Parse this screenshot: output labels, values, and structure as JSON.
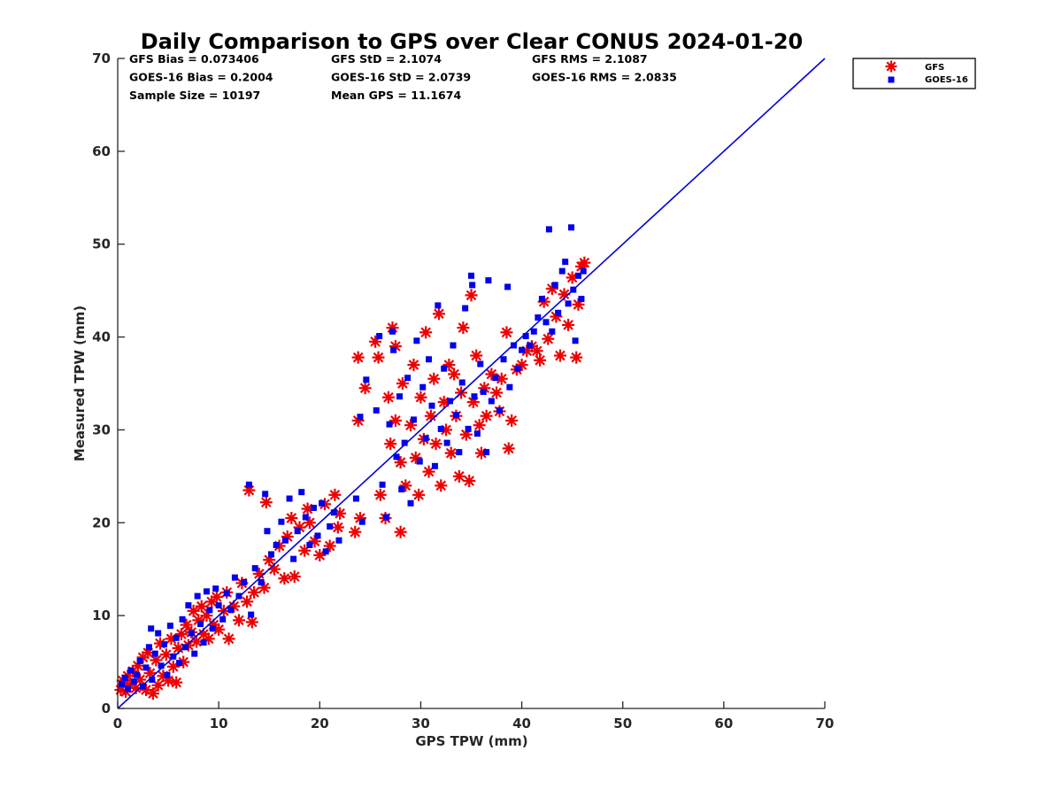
{
  "chart_data": {
    "type": "scatter",
    "title": "Daily Comparison to GPS over Clear CONUS 2024-01-20",
    "xlabel": "GPS TPW (mm)",
    "ylabel": "Measured TPW (mm)",
    "xlim": [
      0,
      70
    ],
    "ylim": [
      0,
      70
    ],
    "xticks": [
      0,
      10,
      20,
      30,
      40,
      50,
      60,
      70
    ],
    "yticks": [
      0,
      10,
      20,
      30,
      40,
      50,
      60,
      70
    ],
    "legend_position": "outside-top-right",
    "stats": [
      [
        "GFS Bias = 0.073406",
        "GFS StD = 2.1074",
        "GFS RMS = 2.1087"
      ],
      [
        "GOES-16 Bias = 0.2004",
        "GOES-16 StD = 2.0739",
        "GOES-16 RMS = 2.0835"
      ],
      [
        "Sample Size = 10197",
        "Mean GPS = 11.1674"
      ]
    ],
    "reference_line": {
      "x": [
        0,
        70
      ],
      "y": [
        0,
        70
      ],
      "color": "#0000dd"
    },
    "series": [
      {
        "name": "GFS",
        "marker": "asterisk",
        "color": "#ee0000",
        "points": [
          [
            0.3,
            2.0
          ],
          [
            0.5,
            3.0
          ],
          [
            0.8,
            1.8
          ],
          [
            1.0,
            3.5
          ],
          [
            1.2,
            2.5
          ],
          [
            1.5,
            4.0
          ],
          [
            1.8,
            2.2
          ],
          [
            2.0,
            4.6
          ],
          [
            2.2,
            3.1
          ],
          [
            2.5,
            5.5
          ],
          [
            2.8,
            2.0
          ],
          [
            3.0,
            6.0
          ],
          [
            3.2,
            3.8
          ],
          [
            3.5,
            1.6
          ],
          [
            3.8,
            5.2
          ],
          [
            4.0,
            2.5
          ],
          [
            4.2,
            7.0
          ],
          [
            4.5,
            3.5
          ],
          [
            4.8,
            5.8
          ],
          [
            5.0,
            3.0
          ],
          [
            5.3,
            7.5
          ],
          [
            5.5,
            4.5
          ],
          [
            5.8,
            2.8
          ],
          [
            6.0,
            6.5
          ],
          [
            6.3,
            8.0
          ],
          [
            6.5,
            5.0
          ],
          [
            6.8,
            9.0
          ],
          [
            7.0,
            6.8
          ],
          [
            7.3,
            8.2
          ],
          [
            7.5,
            10.5
          ],
          [
            7.8,
            7.2
          ],
          [
            8.0,
            9.5
          ],
          [
            8.3,
            11.0
          ],
          [
            8.5,
            8.0
          ],
          [
            8.8,
            10.0
          ],
          [
            9.0,
            7.5
          ],
          [
            9.3,
            11.5
          ],
          [
            9.5,
            9.0
          ],
          [
            9.8,
            12.0
          ],
          [
            10.0,
            8.5
          ],
          [
            10.5,
            10.5
          ],
          [
            10.8,
            12.5
          ],
          [
            11.0,
            7.5
          ],
          [
            11.5,
            11.0
          ],
          [
            12.0,
            9.5
          ],
          [
            12.3,
            13.5
          ],
          [
            12.8,
            11.5
          ],
          [
            13.0,
            23.5
          ],
          [
            13.3,
            9.3
          ],
          [
            13.5,
            12.5
          ],
          [
            14.0,
            14.5
          ],
          [
            14.5,
            13.0
          ],
          [
            14.7,
            22.2
          ],
          [
            15.0,
            16.0
          ],
          [
            15.5,
            15.0
          ],
          [
            16.0,
            17.5
          ],
          [
            16.5,
            14.0
          ],
          [
            16.8,
            18.5
          ],
          [
            17.2,
            20.5
          ],
          [
            17.5,
            14.2
          ],
          [
            18.0,
            19.5
          ],
          [
            18.5,
            17.0
          ],
          [
            18.8,
            21.5
          ],
          [
            19.0,
            20.0
          ],
          [
            19.5,
            18.0
          ],
          [
            20.0,
            16.5
          ],
          [
            20.5,
            22.0
          ],
          [
            21.0,
            17.5
          ],
          [
            21.5,
            23.0
          ],
          [
            21.8,
            19.5
          ],
          [
            22.0,
            21.0
          ],
          [
            23.5,
            19.0
          ],
          [
            24.0,
            20.5
          ],
          [
            23.8,
            31.0
          ],
          [
            23.8,
            37.8
          ],
          [
            24.5,
            34.5
          ],
          [
            25.5,
            39.5
          ],
          [
            25.8,
            37.8
          ],
          [
            26.0,
            23.0
          ],
          [
            26.5,
            20.5
          ],
          [
            26.8,
            33.5
          ],
          [
            27.0,
            28.5
          ],
          [
            27.2,
            41.0
          ],
          [
            27.5,
            31.0
          ],
          [
            27.5,
            39.0
          ],
          [
            28.0,
            19.0
          ],
          [
            28.0,
            26.5
          ],
          [
            28.2,
            35.0
          ],
          [
            28.5,
            24.0
          ],
          [
            29.0,
            30.5
          ],
          [
            29.3,
            37.0
          ],
          [
            29.5,
            27.0
          ],
          [
            29.8,
            23.0
          ],
          [
            30.0,
            33.5
          ],
          [
            30.3,
            29.0
          ],
          [
            30.5,
            40.5
          ],
          [
            30.8,
            25.5
          ],
          [
            31.0,
            31.5
          ],
          [
            31.3,
            35.5
          ],
          [
            31.5,
            28.5
          ],
          [
            31.8,
            42.5
          ],
          [
            32.0,
            24.0
          ],
          [
            32.3,
            33.0
          ],
          [
            32.5,
            30.0
          ],
          [
            32.8,
            37.0
          ],
          [
            33.0,
            27.5
          ],
          [
            33.3,
            36.0
          ],
          [
            33.5,
            31.5
          ],
          [
            33.8,
            25.0
          ],
          [
            34.0,
            34.0
          ],
          [
            34.2,
            41.0
          ],
          [
            34.5,
            29.5
          ],
          [
            34.8,
            24.5
          ],
          [
            35.0,
            44.5
          ],
          [
            35.2,
            33.0
          ],
          [
            35.5,
            38.0
          ],
          [
            35.8,
            30.5
          ],
          [
            36.0,
            27.5
          ],
          [
            36.3,
            34.5
          ],
          [
            36.5,
            31.5
          ],
          [
            37.0,
            36.0
          ],
          [
            37.5,
            34.0
          ],
          [
            37.8,
            32.0
          ],
          [
            38.0,
            35.5
          ],
          [
            38.5,
            40.5
          ],
          [
            38.7,
            28.0
          ],
          [
            39.0,
            31.0
          ],
          [
            39.5,
            36.5
          ],
          [
            40.0,
            37.0
          ],
          [
            40.5,
            38.5
          ],
          [
            41.0,
            39.0
          ],
          [
            41.5,
            38.5
          ],
          [
            41.8,
            37.5
          ],
          [
            42.2,
            43.8
          ],
          [
            42.6,
            39.8
          ],
          [
            43.0,
            45.2
          ],
          [
            43.4,
            42.2
          ],
          [
            43.8,
            38.0
          ],
          [
            44.2,
            44.6
          ],
          [
            44.6,
            41.3
          ],
          [
            45.0,
            46.4
          ],
          [
            45.4,
            37.8
          ],
          [
            45.6,
            43.5
          ],
          [
            45.9,
            47.6
          ],
          [
            46.2,
            48.0
          ]
        ]
      },
      {
        "name": "GOES-16",
        "marker": "square",
        "color": "#0000ee",
        "points": [
          [
            0.4,
            2.6
          ],
          [
            0.7,
            3.3
          ],
          [
            1.0,
            2.1
          ],
          [
            1.3,
            4.1
          ],
          [
            1.6,
            2.9
          ],
          [
            1.9,
            3.6
          ],
          [
            2.2,
            5.1
          ],
          [
            2.5,
            2.4
          ],
          [
            2.8,
            4.4
          ],
          [
            3.1,
            6.6
          ],
          [
            3.3,
            8.6
          ],
          [
            3.4,
            3.1
          ],
          [
            3.7,
            5.9
          ],
          [
            4.0,
            8.1
          ],
          [
            4.3,
            4.6
          ],
          [
            4.6,
            6.9
          ],
          [
            4.9,
            3.6
          ],
          [
            5.2,
            8.9
          ],
          [
            5.5,
            5.6
          ],
          [
            5.8,
            7.6
          ],
          [
            6.1,
            4.9
          ],
          [
            6.4,
            9.6
          ],
          [
            6.7,
            6.6
          ],
          [
            7.0,
            11.1
          ],
          [
            7.3,
            8.1
          ],
          [
            7.6,
            5.9
          ],
          [
            7.9,
            12.1
          ],
          [
            8.2,
            9.1
          ],
          [
            8.5,
            7.1
          ],
          [
            8.8,
            12.6
          ],
          [
            9.1,
            10.6
          ],
          [
            9.4,
            8.6
          ],
          [
            9.7,
            12.9
          ],
          [
            10.0,
            11.1
          ],
          [
            10.4,
            9.6
          ],
          [
            10.8,
            12.4
          ],
          [
            11.2,
            10.6
          ],
          [
            11.6,
            14.1
          ],
          [
            12.0,
            12.1
          ],
          [
            12.5,
            13.6
          ],
          [
            13.0,
            24.1
          ],
          [
            13.2,
            10.1
          ],
          [
            13.6,
            15.1
          ],
          [
            14.2,
            13.6
          ],
          [
            14.6,
            23.1
          ],
          [
            14.8,
            19.1
          ],
          [
            15.2,
            16.6
          ],
          [
            15.7,
            17.6
          ],
          [
            16.2,
            20.1
          ],
          [
            16.6,
            18.1
          ],
          [
            17.0,
            22.6
          ],
          [
            17.4,
            16.1
          ],
          [
            17.8,
            19.1
          ],
          [
            18.2,
            23.3
          ],
          [
            18.6,
            20.6
          ],
          [
            19.0,
            17.6
          ],
          [
            19.4,
            21.6
          ],
          [
            19.8,
            18.6
          ],
          [
            20.2,
            22.1
          ],
          [
            20.6,
            16.9
          ],
          [
            21.0,
            19.6
          ],
          [
            21.4,
            21.1
          ],
          [
            21.9,
            18.1
          ],
          [
            23.6,
            22.6
          ],
          [
            24.0,
            31.4
          ],
          [
            24.2,
            20.1
          ],
          [
            24.6,
            35.4
          ],
          [
            25.6,
            32.1
          ],
          [
            25.9,
            40.1
          ],
          [
            26.2,
            24.1
          ],
          [
            26.6,
            20.6
          ],
          [
            26.9,
            30.6
          ],
          [
            27.2,
            40.6
          ],
          [
            27.3,
            38.6
          ],
          [
            27.6,
            27.1
          ],
          [
            27.9,
            33.6
          ],
          [
            28.1,
            23.6
          ],
          [
            28.4,
            28.6
          ],
          [
            28.7,
            35.6
          ],
          [
            29.0,
            22.1
          ],
          [
            29.3,
            31.1
          ],
          [
            29.6,
            39.6
          ],
          [
            29.9,
            26.6
          ],
          [
            30.2,
            34.6
          ],
          [
            30.5,
            29.1
          ],
          [
            30.8,
            37.6
          ],
          [
            31.1,
            32.6
          ],
          [
            31.4,
            26.1
          ],
          [
            31.7,
            43.4
          ],
          [
            32.0,
            30.1
          ],
          [
            32.3,
            36.6
          ],
          [
            32.6,
            28.6
          ],
          [
            32.9,
            33.1
          ],
          [
            33.2,
            39.1
          ],
          [
            33.5,
            31.6
          ],
          [
            33.8,
            27.6
          ],
          [
            34.1,
            35.1
          ],
          [
            34.4,
            43.1
          ],
          [
            34.7,
            30.1
          ],
          [
            35.0,
            46.6
          ],
          [
            35.1,
            45.6
          ],
          [
            35.3,
            33.6
          ],
          [
            35.6,
            29.6
          ],
          [
            35.9,
            37.1
          ],
          [
            36.2,
            34.1
          ],
          [
            36.5,
            27.6
          ],
          [
            36.7,
            46.1
          ],
          [
            37.0,
            33.1
          ],
          [
            37.4,
            35.6
          ],
          [
            37.8,
            32.1
          ],
          [
            38.2,
            37.6
          ],
          [
            38.6,
            45.4
          ],
          [
            38.8,
            34.6
          ],
          [
            39.2,
            39.1
          ],
          [
            39.6,
            36.6
          ],
          [
            40.0,
            38.6
          ],
          [
            40.4,
            40.1
          ],
          [
            40.8,
            39.1
          ],
          [
            41.2,
            40.6
          ],
          [
            41.6,
            42.1
          ],
          [
            42.0,
            44.1
          ],
          [
            42.4,
            41.6
          ],
          [
            42.7,
            51.6
          ],
          [
            43.0,
            40.6
          ],
          [
            43.3,
            45.6
          ],
          [
            43.6,
            42.6
          ],
          [
            44.0,
            47.1
          ],
          [
            44.3,
            48.1
          ],
          [
            44.6,
            43.6
          ],
          [
            44.9,
            51.8
          ],
          [
            45.1,
            45.1
          ],
          [
            45.3,
            39.6
          ],
          [
            45.6,
            46.6
          ],
          [
            45.9,
            44.1
          ],
          [
            46.1,
            47.1
          ]
        ]
      }
    ]
  }
}
